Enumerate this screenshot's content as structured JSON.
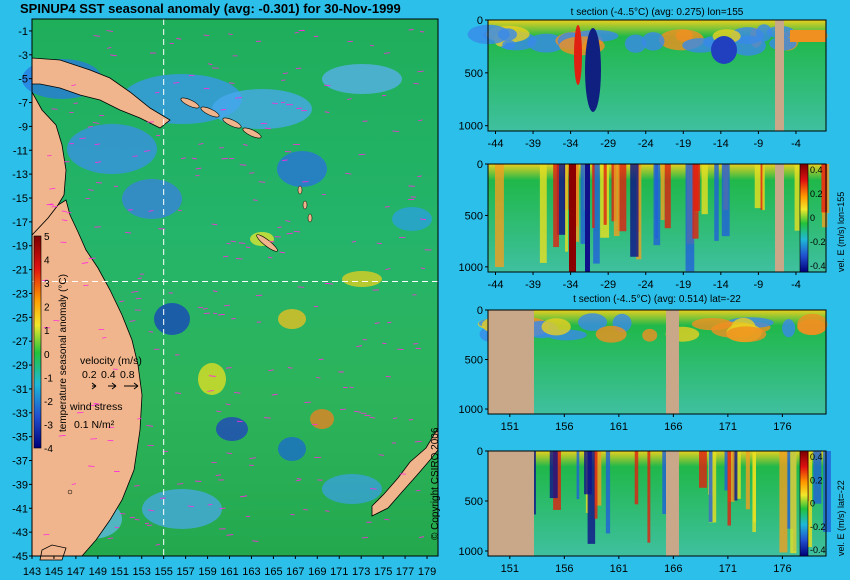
{
  "main_title": "SPINUP4 SST seasonal anomaly (avg: -0.301) for 30-Nov-1999",
  "copyright": "© Copyright CSIRO 2006",
  "colors": {
    "background": "#2bbfea",
    "land": "#f0b58c",
    "section_land": "#c8a888",
    "crosshair": "#ffffff"
  },
  "chart_data": [
    {
      "type": "heatmap",
      "name": "sst-anomaly-map",
      "title": "SPINUP4 SST seasonal anomaly (avg: -0.301) for 30-Nov-1999",
      "x_ticks": [
        "143",
        "145",
        "147",
        "149",
        "151",
        "153",
        "155",
        "157",
        "159",
        "161",
        "163",
        "165",
        "167",
        "169",
        "171",
        "173",
        "175",
        "177",
        "179"
      ],
      "y_ticks": [
        "-1",
        "-3",
        "-5",
        "-7",
        "-9",
        "-11",
        "-13",
        "-15",
        "-17",
        "-19",
        "-21",
        "-23",
        "-25",
        "-27",
        "-29",
        "-31",
        "-33",
        "-35",
        "-37",
        "-39",
        "-41",
        "-43",
        "-45"
      ],
      "xlim": [
        143,
        180
      ],
      "ylim": [
        -45,
        0
      ],
      "section_lon": 155,
      "section_lat": -22,
      "colorbar": {
        "label": "temperature seasonal anomaly (°C)",
        "ticks": [
          "5",
          "4",
          "3",
          "2",
          "1",
          "0",
          "-1",
          "-2",
          "-3",
          "-4"
        ],
        "range": [
          -4,
          5
        ]
      },
      "velocity_legend": {
        "label": "velocity (m/s)",
        "ticks": [
          "0.2",
          "0.4",
          "0.8"
        ]
      },
      "wind_legend": {
        "label": "wind stress",
        "value": "0.1 N/m²"
      }
    },
    {
      "type": "heatmap",
      "name": "t-section-lon155",
      "title": "t section (-4..5°C) (avg: 0.275) lon=155",
      "x_ticks": [
        "-44",
        "-39",
        "-34",
        "-29",
        "-24",
        "-19",
        "-14",
        "-9",
        "-4"
      ],
      "y_ticks": [
        "0",
        "500",
        "1000"
      ],
      "xlim": [
        -45,
        0
      ],
      "ylim": [
        1050,
        0
      ]
    },
    {
      "type": "heatmap",
      "name": "v-section-lon155",
      "title": "",
      "x_ticks": [
        "-44",
        "-39",
        "-34",
        "-29",
        "-24",
        "-19",
        "-14",
        "-9",
        "-4"
      ],
      "y_ticks": [
        "0",
        "500",
        "1000"
      ],
      "xlim": [
        -45,
        0
      ],
      "ylim": [
        1050,
        0
      ],
      "colorbar": {
        "label": "vel. E (m/s) lon=155",
        "ticks": [
          "0.4",
          "0.2",
          "0",
          "-0.2",
          "-0.4"
        ],
        "range": [
          -0.4,
          0.4
        ]
      }
    },
    {
      "type": "heatmap",
      "name": "t-section-lat-22",
      "title": "t section (-4..5°C) (avg: 0.514) lat=-22",
      "x_ticks": [
        "151",
        "156",
        "161",
        "166",
        "171",
        "176"
      ],
      "y_ticks": [
        "0",
        "500",
        "1000"
      ],
      "xlim": [
        149,
        180
      ],
      "ylim": [
        1050,
        0
      ]
    },
    {
      "type": "heatmap",
      "name": "v-section-lat-22",
      "title": "",
      "x_ticks": [
        "151",
        "156",
        "161",
        "166",
        "171",
        "176"
      ],
      "y_ticks": [
        "0",
        "500",
        "1000"
      ],
      "xlim": [
        149,
        180
      ],
      "ylim": [
        1050,
        0
      ],
      "colorbar": {
        "label": "vel. E (m/s) lat=-22",
        "ticks": [
          "0.4",
          "0.2",
          "0",
          "-0.2",
          "-0.4"
        ],
        "range": [
          -0.4,
          0.4
        ]
      }
    }
  ]
}
